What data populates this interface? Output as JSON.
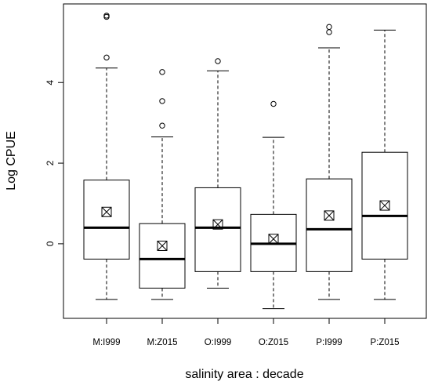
{
  "chart_data": {
    "type": "boxplot",
    "xlabel": "salinity area : decade",
    "ylabel": "Log CPUE",
    "ylim": [
      -1.85,
      5.95
    ],
    "yticks": [
      0,
      2,
      4
    ],
    "grid": false,
    "categories": [
      "M:I999",
      "M:Z015",
      "O:I999",
      "O:Z015",
      "P:I999",
      "P:Z015"
    ],
    "boxes": [
      {
        "category": "M:I999",
        "whisker_low": -1.38,
        "q1": -0.38,
        "median": 0.4,
        "q3": 1.58,
        "whisker_high": 4.36,
        "mean": 0.79,
        "outliers": [
          4.62,
          5.63,
          5.66
        ]
      },
      {
        "category": "M:Z015",
        "whisker_low": -1.38,
        "q1": -1.1,
        "median": -0.38,
        "q3": 0.5,
        "whisker_high": 2.65,
        "mean": -0.05,
        "outliers": [
          2.93,
          3.54,
          4.26
        ]
      },
      {
        "category": "O:I999",
        "whisker_low": -1.1,
        "q1": -0.69,
        "median": 0.4,
        "q3": 1.39,
        "whisker_high": 4.29,
        "mean": 0.48,
        "outliers": [
          4.53
        ]
      },
      {
        "category": "O:Z015",
        "whisker_low": -1.61,
        "q1": -0.69,
        "median": 0.0,
        "q3": 0.73,
        "whisker_high": 2.64,
        "mean": 0.12,
        "outliers": [
          3.47
        ]
      },
      {
        "category": "P:I999",
        "whisker_low": -1.38,
        "q1": -0.69,
        "median": 0.36,
        "q3": 1.61,
        "whisker_high": 4.86,
        "mean": 0.7,
        "outliers": [
          5.25,
          5.38
        ]
      },
      {
        "category": "P:Z015",
        "whisker_low": -1.38,
        "q1": -0.38,
        "median": 0.69,
        "q3": 2.27,
        "whisker_high": 5.3,
        "mean": 0.95,
        "outliers": []
      }
    ]
  }
}
